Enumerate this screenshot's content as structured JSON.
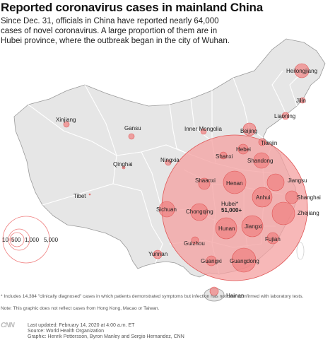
{
  "title": "Reported coronavirus cases in mainland China",
  "subtitle": "Since Dec. 31, officials in China have reported nearly 64,000 cases of novel coronavirus. A large proportion of them are in Hubei province, where the outbreak began in the city of Wuhan.",
  "colors": {
    "land": "#e6e6e6",
    "border": "#ffffff",
    "outline": "#9a9a9a",
    "bubble_fill": "#f08080",
    "bubble_stroke": "#e05555",
    "hubei_fill": "#f4a0a0"
  },
  "map_labels": {
    "heilongjiang": "Heilongjiang",
    "jilin": "Jilin",
    "liaoning": "Liaoning",
    "inner_mongolia": "Inner Mongolia",
    "beijing": "Beijing",
    "tianjin": "Tianjin",
    "hebei": "Hebei",
    "xinjiang": "Xinjiang",
    "gansu": "Gansu",
    "shanxi": "Shanxi",
    "ningxia": "Ningxia",
    "shandong": "Shandong",
    "qinghai": "Qinghai",
    "shaanxi": "Shaanxi",
    "henan": "Henan",
    "jiangsu": "Jiangsu",
    "anhui": "Anhui",
    "shanghai": "Shanghai",
    "tibet": "Tibet",
    "sichuan": "Sichuan",
    "chongqing": "Chongqing",
    "hubei": "Hubei*",
    "hubei_cases": "51,000+",
    "zhejiang": "Zhejiang",
    "hunan": "Hunan",
    "jiangxi": "Jiangxi",
    "guizhou": "Guizhou",
    "fujian": "Fujian",
    "yunnan": "Yunnan",
    "guangxi": "Guangxi",
    "guangdong": "Guangdong",
    "hainan": "Hainan"
  },
  "legend": {
    "labels": [
      "10",
      "500",
      "1,000",
      "5,000"
    ],
    "values": [
      10,
      500,
      1000,
      5000
    ]
  },
  "bubbles": [
    {
      "region": "Hubei",
      "cases": 51000
    },
    {
      "region": "Guangdong",
      "cases": 1241
    },
    {
      "region": "Henan",
      "cases": 1169
    },
    {
      "region": "Zhejiang",
      "cases": 1145
    },
    {
      "region": "Hunan",
      "cases": 968
    },
    {
      "region": "Anhui",
      "cases": 910
    },
    {
      "region": "Jiangxi",
      "cases": 900
    },
    {
      "region": "Jiangsu",
      "cases": 570
    },
    {
      "region": "Chongqing",
      "cases": 525
    },
    {
      "region": "Shandong",
      "cases": 519
    },
    {
      "region": "Sichuan",
      "cases": 463
    },
    {
      "region": "Heilongjiang",
      "cases": 417
    },
    {
      "region": "Beijing",
      "cases": 375
    },
    {
      "region": "Shanghai",
      "cases": 318
    },
    {
      "region": "Hebei",
      "cases": 283
    },
    {
      "region": "Fujian",
      "cases": 281
    },
    {
      "region": "Guangxi",
      "cases": 226
    },
    {
      "region": "Shaanxi",
      "cases": 225
    },
    {
      "region": "Yunnan",
      "cases": 162
    },
    {
      "region": "Hainan",
      "cases": 157
    },
    {
      "region": "Guizhou",
      "cases": 140
    },
    {
      "region": "Tianjin",
      "cases": 120
    },
    {
      "region": "Shanxi",
      "cases": 126
    },
    {
      "region": "Liaoning",
      "cases": 116
    },
    {
      "region": "Jilin",
      "cases": 88
    },
    {
      "region": "Gansu",
      "cases": 90
    },
    {
      "region": "Xinjiang",
      "cases": 70
    },
    {
      "region": "Inner Mongolia",
      "cases": 70
    },
    {
      "region": "Ningxia",
      "cases": 70
    },
    {
      "region": "Qinghai",
      "cases": 18
    },
    {
      "region": "Tibet",
      "cases": 1
    }
  ],
  "footnote": "* Includes 14,384 \"clinically diagnosed\" cases in which patients demonstrated symptoms but infection has not been confirmed with laboratory tests.",
  "note": "Note: This graphic does not reflect cases from Hong Kong, Macao or Taiwan.",
  "logo": "CNN",
  "credits": {
    "updated": "Last updated: February 14, 2020 at 4:00 a.m. ET",
    "source": "Source: World Health Organization",
    "graphic": "Graphic: Henrik Pettersson, Byron Manley and Sergio Hernandez, CNN"
  }
}
